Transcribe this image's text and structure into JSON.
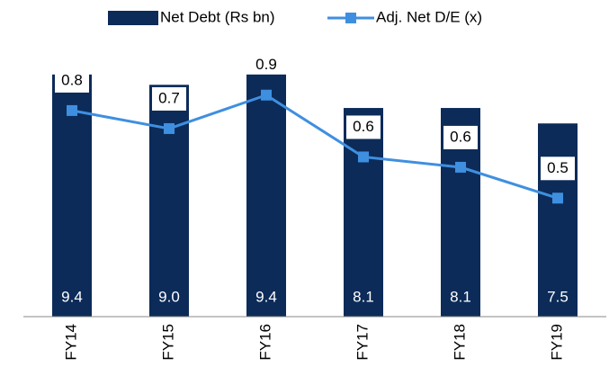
{
  "chart_data": {
    "type": "bar-line",
    "categories": [
      "FY14",
      "FY15",
      "FY16",
      "FY17",
      "FY18",
      "FY19"
    ],
    "series": [
      {
        "name": "Net Debt (Rs bn)",
        "color": "#0c2b59",
        "type": "bar",
        "values": [
          9.4,
          9.0,
          9.4,
          8.1,
          8.1,
          7.5
        ],
        "value_labels": [
          "9.4",
          "9.0",
          "9.4",
          "8.1",
          "8.1",
          "7.5"
        ]
      },
      {
        "name": "Adj. Net D/E (x)",
        "color": "#3f8fe0",
        "type": "line",
        "axis": "y2",
        "values": [
          0.8,
          0.73,
          0.86,
          0.62,
          0.58,
          0.46
        ],
        "value_labels": [
          "0.8",
          "0.7",
          "0.9",
          "0.6",
          "0.6",
          "0.5"
        ]
      }
    ],
    "ylim": [
      0,
      11
    ],
    "y2lim": [
      0,
      1.1
    ],
    "legend": "top"
  }
}
